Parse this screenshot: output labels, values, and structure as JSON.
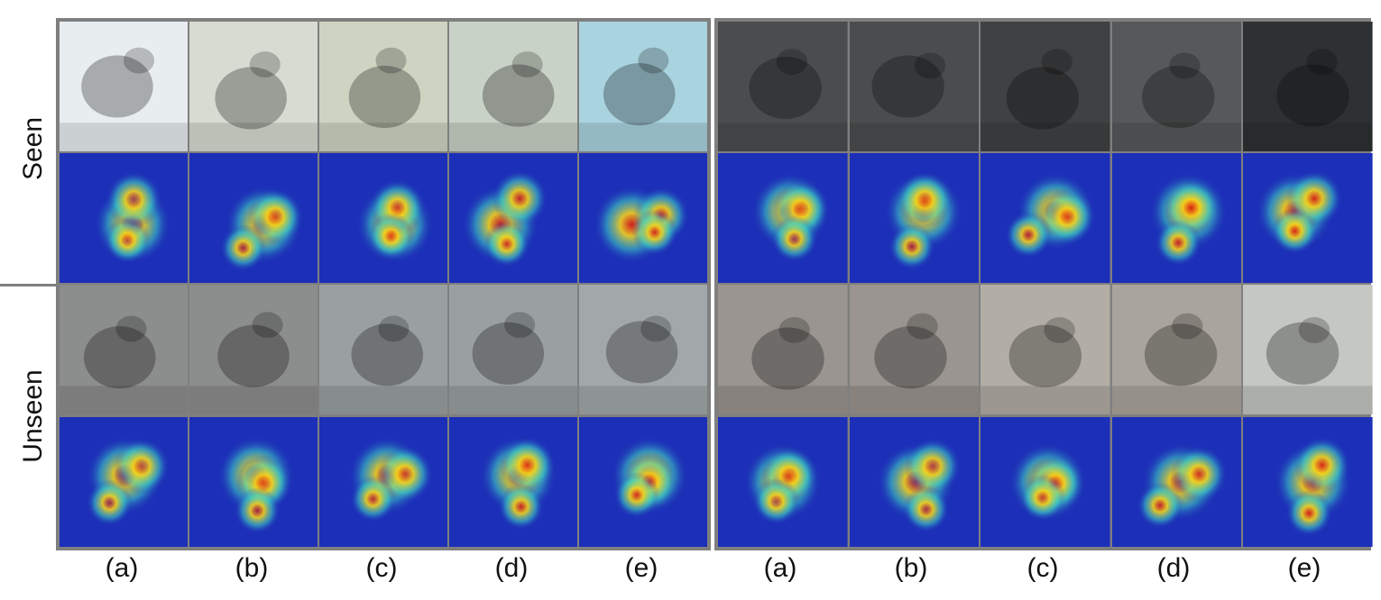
{
  "row_labels": {
    "seen": "Seen",
    "unseen": "Unseen"
  },
  "column_labels": [
    "(a)",
    "(b)",
    "(c)",
    "(d)",
    "(e)"
  ],
  "panels": [
    {
      "name": "left-panel",
      "rows": [
        {
          "kind": "photo",
          "subject": "warbler-on-branch",
          "tones": [
            "#e8edf0",
            "#d7dcd2",
            "#cfd4c2",
            "#c9d2c6",
            "#a9d3df"
          ]
        },
        {
          "kind": "heatmap",
          "subject": "warbler-attention"
        },
        {
          "kind": "photo",
          "subject": "albatross-in-water",
          "tones": [
            "#8c8e8d",
            "#8c8e8d",
            "#9aa0a0",
            "#9aa0a0",
            "#a2a8a9"
          ]
        },
        {
          "kind": "heatmap",
          "subject": "albatross-attention"
        }
      ]
    },
    {
      "name": "right-panel",
      "rows": [
        {
          "kind": "photo",
          "subject": "dark-seabird",
          "tones": [
            "#4a4d4e",
            "#4a4d4e",
            "#3f4142",
            "#565859",
            "#2e3133"
          ]
        },
        {
          "kind": "heatmap",
          "subject": "seabird-attention"
        },
        {
          "kind": "photo",
          "subject": "goose-in-water",
          "tones": [
            "#9a9590",
            "#9a9590",
            "#b2aea6",
            "#aaa59c",
            "#c4c7c2"
          ]
        },
        {
          "kind": "heatmap",
          "subject": "goose-attention"
        }
      ]
    }
  ],
  "colors": {
    "frame": "#7f7f7f",
    "heatmap_base": "#1c2fb8",
    "heatmap_hot": "#e01a10",
    "heatmap_warm": "#f5d21a",
    "heatmap_mid": "#3fd4c4"
  }
}
